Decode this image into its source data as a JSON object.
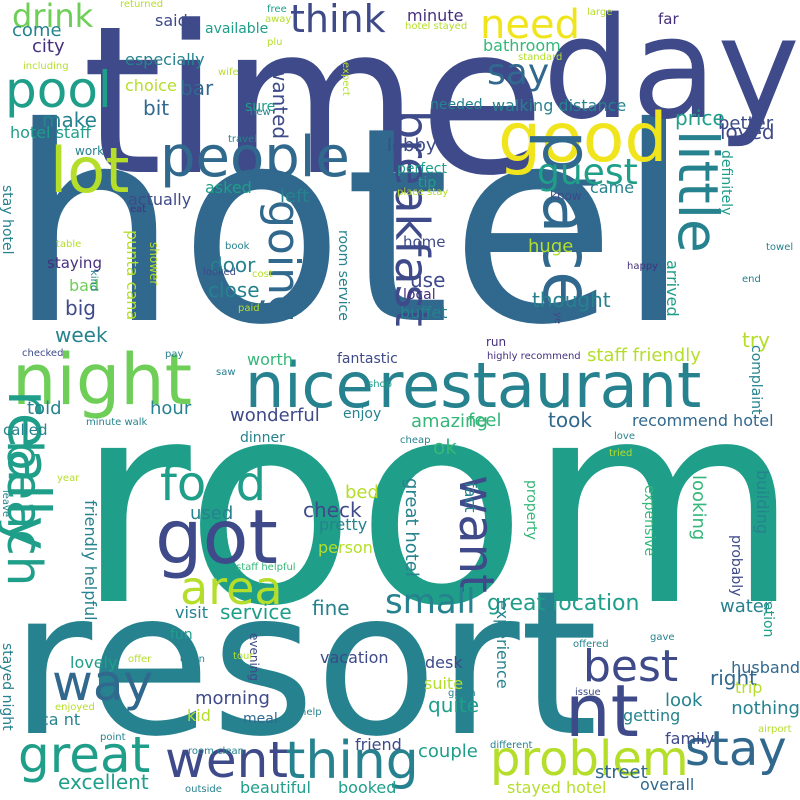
{
  "palette": {
    "purple": "#46307e",
    "indigo": "#3e4a89",
    "blue": "#31688e",
    "teal": "#26828e",
    "sea": "#1f9e89",
    "green": "#35b779",
    "lime": "#6ece58",
    "yellowgreen": "#b5de2b",
    "yellow": "#f0e51c"
  },
  "words": [
    "time",
    "hotel",
    "day",
    "room",
    "resort",
    "night",
    "restaurant",
    "nice",
    "got",
    "people",
    "good",
    "lot",
    "place",
    "pool",
    "little",
    "need",
    "breakfast",
    "going",
    "really",
    "beach",
    "area",
    "food",
    "way",
    "want",
    "nt",
    "best",
    "stay",
    "problem",
    "thing",
    "went",
    "great",
    "think",
    "drink",
    "say",
    "guest",
    "small",
    "said",
    "come",
    "city",
    "minute",
    "bathroom",
    "better",
    "far",
    "especially",
    "available",
    "choice",
    "bar",
    "bit",
    "make",
    "wanted",
    "sure",
    "hotel staff",
    "lobby",
    "price",
    "loved",
    "perfect",
    "tip",
    "came",
    "walking distance",
    "needed",
    "definitely",
    "actually",
    "asked",
    "left",
    "staying",
    "home",
    "use",
    "local",
    "buffet",
    "arrived",
    "thought",
    "try",
    "door",
    "close",
    "bad",
    "big",
    "week",
    "punta cana",
    "room service",
    "huge",
    "run",
    "staff friendly",
    "worth",
    "fantastic",
    "hour",
    "told",
    "wonderful",
    "enjoy",
    "amazing",
    "feel",
    "took",
    "recommend hotel",
    "called",
    "ok",
    "dinner",
    "check",
    "bed",
    "used",
    "pretty",
    "person",
    "great hotel",
    "friendly helpful",
    "fact",
    "property",
    "expensive",
    "looking",
    "probably",
    "building",
    "fine",
    "great location",
    "service",
    "visit",
    "fun",
    "water",
    "right",
    "husband",
    "trip",
    "experience",
    "look",
    "morning",
    "evening",
    "lovely",
    "vacation",
    "desk",
    "suite",
    "kid",
    "meal",
    "nothing",
    "getting",
    "family",
    "stayed night",
    "ca nt",
    "friend",
    "quite",
    "couple",
    "excellent",
    "beautiful",
    "booked",
    "stayed hotel",
    "street",
    "overall",
    "complaint",
    "reservation",
    "stay hotel",
    "including",
    "returned",
    "free",
    "away",
    "wife",
    "hotel stayed",
    "expect",
    "standard",
    "large",
    "new",
    "plu",
    "travel",
    "work",
    "eat",
    "place stay",
    "know",
    "shower",
    "table",
    "book",
    "looked",
    "cost",
    "paid",
    "kind",
    "happy",
    "end",
    "towel",
    "ye",
    "checked",
    "pay",
    "highly recommend",
    "saw",
    "shop",
    "minute walk",
    "cheap",
    "love",
    "tried",
    "year",
    "leave",
    "staff helpful",
    "offer",
    "tour",
    "gave",
    "offered",
    "open",
    "enjoyed",
    "help",
    "given",
    "issue",
    "airport",
    "point",
    "room clean",
    "different",
    "outside"
  ]
}
